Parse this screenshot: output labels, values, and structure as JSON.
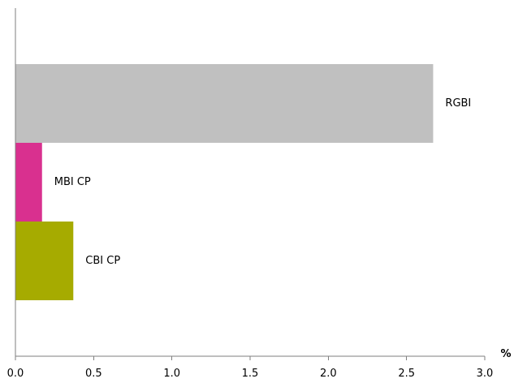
{
  "chart_data": {
    "type": "bar",
    "orientation": "horizontal",
    "categories": [
      "RGBI",
      "MBI CP",
      "CBI CP"
    ],
    "values": [
      2.67,
      0.17,
      0.37
    ],
    "colors": [
      "#c0c0c0",
      "#d9308f",
      "#a6ab00"
    ],
    "title": "",
    "xlabel": "%",
    "ylabel": "",
    "xlim": [
      0,
      3.0
    ],
    "xticks": [
      "0.0",
      "0.5",
      "1.0",
      "1.5",
      "2.0",
      "2.5",
      "3.0"
    ],
    "grid": false,
    "legend": "none"
  }
}
